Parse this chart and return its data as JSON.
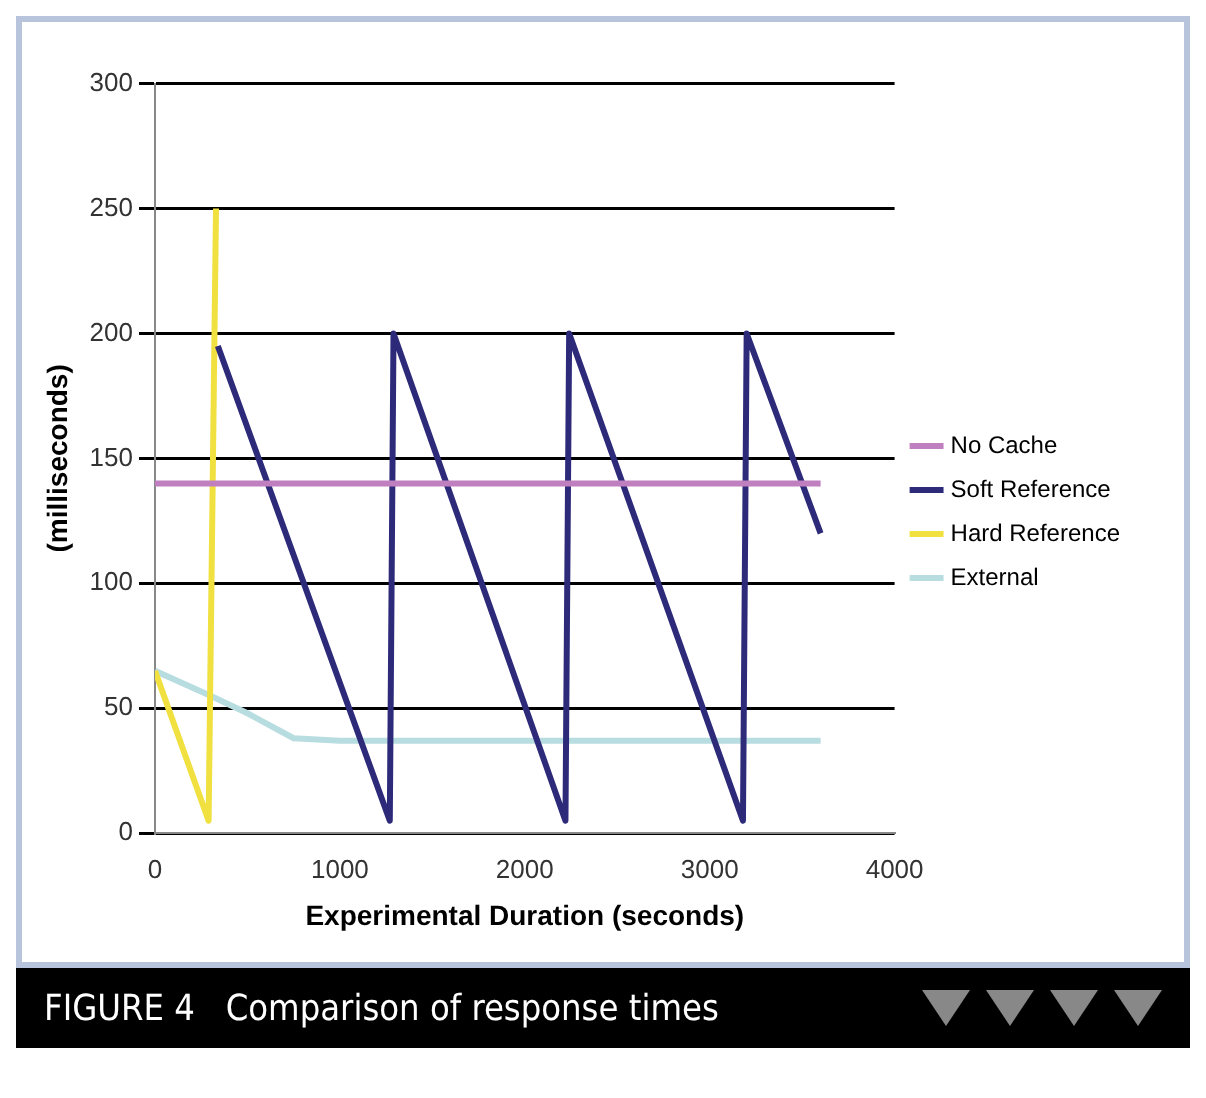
{
  "chart_data": {
    "type": "line",
    "xlabel": "Experimental Duration (seconds)",
    "ylabel": "(milliseconds)",
    "xlim": [
      0,
      4000
    ],
    "xticks": [
      0,
      1000,
      2000,
      3000,
      4000
    ],
    "ylim": [
      0,
      300
    ],
    "yticks": [
      0,
      50,
      100,
      150,
      200,
      250,
      300
    ],
    "grid": "y",
    "legend": "right",
    "marker": "none",
    "line_style": "solid",
    "annotations": [
      "FIGURE 4   Comparison of response times"
    ],
    "series": [
      {
        "name": "No Cache",
        "color": "#c080c0",
        "x": [
          0,
          3600
        ],
        "values": [
          140,
          140
        ]
      },
      {
        "name": "Soft Reference",
        "color": "#2e2a7a",
        "x": [
          340,
          1270,
          1290,
          2220,
          2240,
          3180,
          3200,
          3600
        ],
        "values": [
          195,
          5,
          200,
          5,
          200,
          5,
          200,
          120
        ]
      },
      {
        "name": "Hard Reference",
        "color": "#f0e040",
        "x": [
          0,
          290,
          330
        ],
        "values": [
          65,
          5,
          250
        ]
      },
      {
        "name": "External",
        "color": "#b8dde0",
        "x": [
          0,
          300,
          500,
          750,
          1000,
          3600
        ],
        "values": [
          65,
          55,
          48,
          38,
          37,
          37
        ]
      }
    ]
  }
}
